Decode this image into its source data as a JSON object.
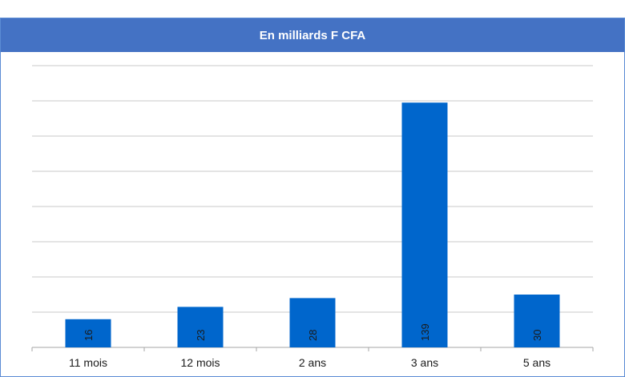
{
  "page": {
    "top_cut_text": ""
  },
  "chart_data": {
    "type": "bar",
    "title": "En milliards F CFA",
    "categories": [
      "11 mois",
      "12 mois",
      "2 ans",
      "3 ans",
      "5 ans"
    ],
    "values": [
      16,
      23,
      28,
      139,
      30
    ],
    "ylim": [
      0,
      160
    ],
    "grid": true,
    "legend": "none",
    "xlabel": "",
    "ylabel": "",
    "bar_color": "#0066cc",
    "header_color": "#4472c4",
    "grid_color": "#c8c8c8"
  }
}
